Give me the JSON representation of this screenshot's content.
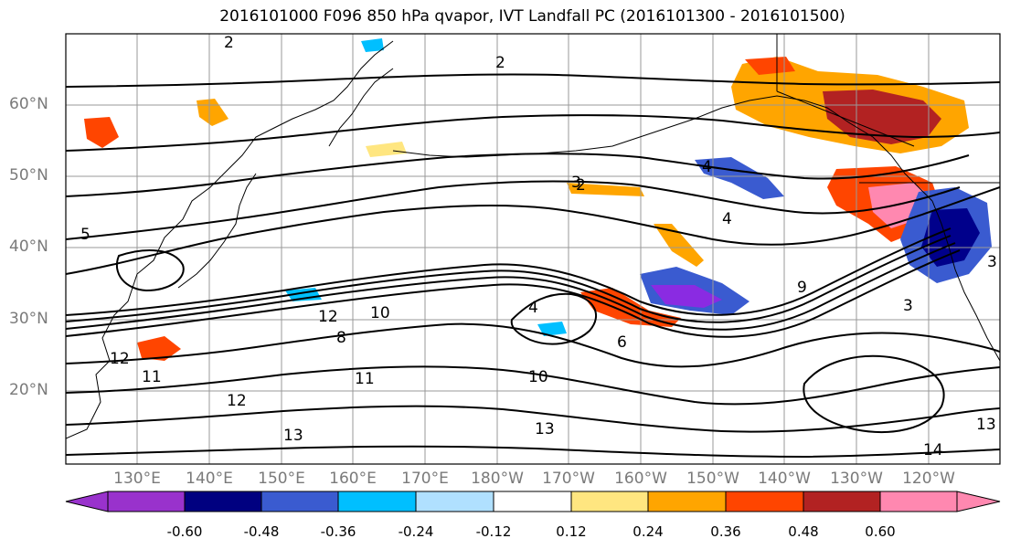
{
  "title": "2016101000 F096 850 hPa qvapor, IVT Landfall PC (2016101300 - 2016101500)",
  "map": {
    "lat_labels": [
      "60°N",
      "50°N",
      "40°N",
      "30°N",
      "20°N"
    ],
    "lon_labels": [
      "130°E",
      "140°E",
      "150°E",
      "160°E",
      "170°E",
      "180°W",
      "170°W",
      "160°W",
      "150°W",
      "140°W",
      "130°W",
      "120°W"
    ],
    "contour_labels": [
      "2",
      "3",
      "4",
      "5",
      "6",
      "8",
      "9",
      "10",
      "11",
      "12",
      "13",
      "14"
    ],
    "fill_contours": [
      {
        "name": "alaska-positive",
        "color": "#b22222"
      },
      {
        "name": "pnw-positive",
        "color": "#ff8ab4"
      },
      {
        "name": "northeast-pacific-negative",
        "color": "#00008b"
      },
      {
        "name": "central-pacific-negative",
        "color": "#8a2be2"
      }
    ]
  },
  "colorbar": {
    "colors": [
      "#9932cc",
      "#000080",
      "#3a5bd0",
      "#00bfff",
      "#b0e0ff",
      "#ffffff",
      "#ffe680",
      "#ffa500",
      "#ff4500",
      "#b22222",
      "#ff88b0"
    ],
    "tick_labels": [
      "-0.60",
      "-0.48",
      "-0.36",
      "-0.24",
      "-0.12",
      "0.12",
      "0.24",
      "0.36",
      "0.48",
      "0.60"
    ]
  }
}
